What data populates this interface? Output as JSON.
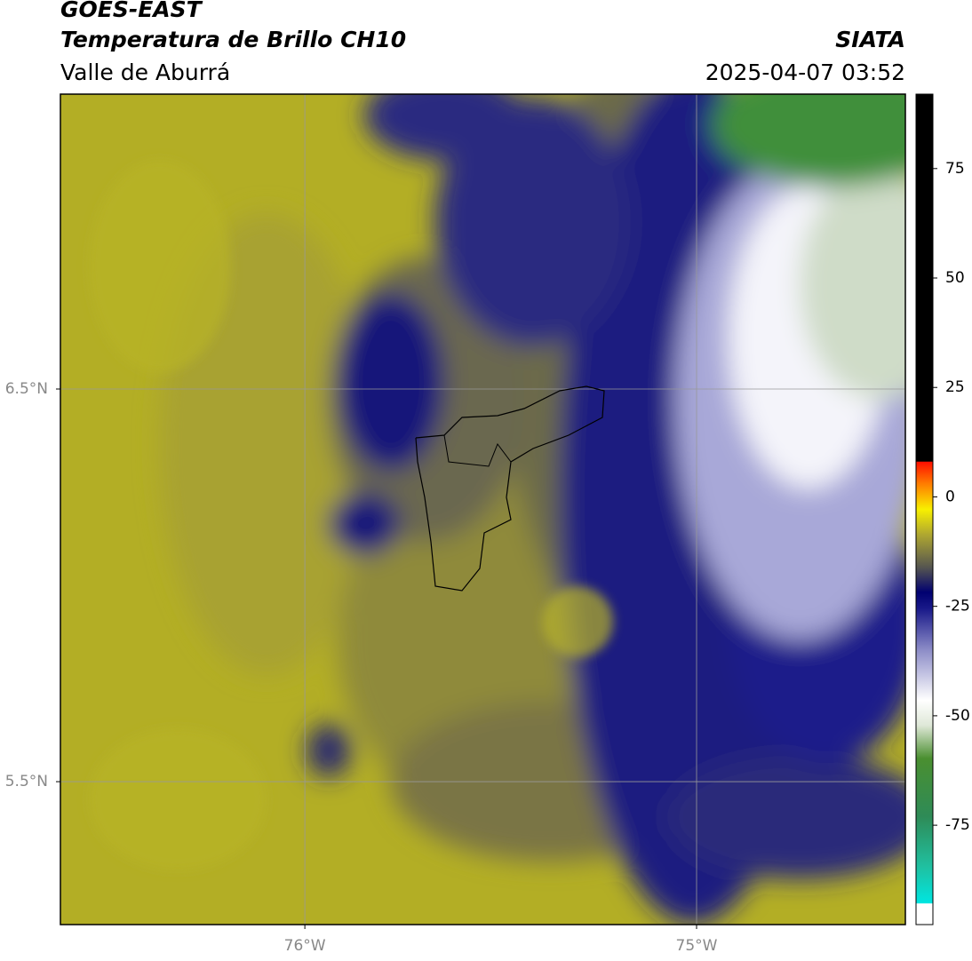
{
  "header": {
    "title": "GOES-EAST",
    "subtitle": "Temperatura de Brillo CH10",
    "region": "Valle de Aburrá",
    "source": "SIATA",
    "timestamp": "2025-04-07 03:52"
  },
  "map": {
    "xlim": [
      -76.624,
      -74.467
    ],
    "ylim": [
      5.136,
      7.251
    ],
    "xticks": [
      {
        "value": -76,
        "label": "76°W"
      },
      {
        "value": -75,
        "label": "75°W"
      }
    ],
    "yticks": [
      {
        "value": 6.5,
        "label": "6.5°N"
      },
      {
        "value": 5.5,
        "label": "5.5°N"
      }
    ],
    "grid": true
  },
  "colorbar": {
    "lim": [
      -97.7,
      92
    ],
    "ticks": [
      75,
      50,
      25,
      0,
      -25,
      -50,
      -75
    ]
  }
}
